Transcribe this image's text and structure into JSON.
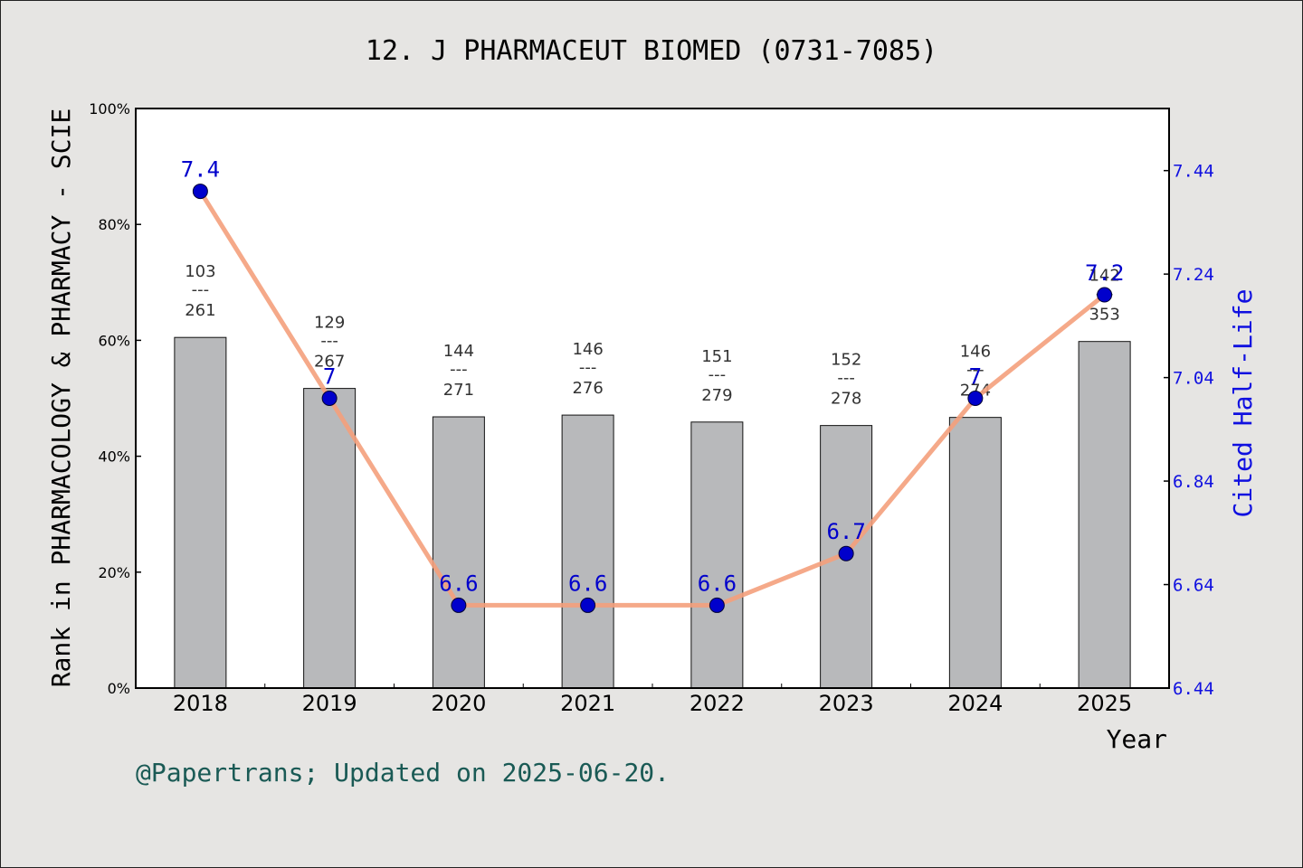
{
  "title": "12. J PHARMACEUT BIOMED (0731-7085)",
  "footer": "@Papertrans; Updated on 2025-06-20.",
  "colors": {
    "bar_fill": "#b8b9bb",
    "line": "#f4a07c",
    "marker": "#0000cc",
    "right_axis": "#1010e0",
    "footer_text": "#1a5a55",
    "background": "#e6e5e3"
  },
  "chart_data": {
    "type": "bar",
    "title": "12. J PHARMACEUT BIOMED (0731-7085)",
    "xlabel": "Year",
    "ylabel": "Rank in PHARMACOLOGY & PHARMACY - SCIE",
    "y2label": "Cited Half-Life",
    "categories": [
      "2018",
      "2019",
      "2020",
      "2021",
      "2022",
      "2023",
      "2024",
      "2025"
    ],
    "ylim": [
      0,
      100
    ],
    "yticks": [
      "0%",
      "20%",
      "40%",
      "60%",
      "80%",
      "100%"
    ],
    "y2lim": [
      6.44,
      7.56
    ],
    "y2ticks": [
      "6.44",
      "6.64",
      "6.84",
      "7.04",
      "7.24",
      "7.44"
    ],
    "grid": false,
    "series": [
      {
        "name": "Rank",
        "kind": "bar",
        "values": [
          60.5,
          51.7,
          46.8,
          47.1,
          45.9,
          45.3,
          46.7,
          59.8
        ],
        "rank": [
          "103",
          "129",
          "144",
          "146",
          "151",
          "152",
          "146",
          "142"
        ],
        "total": [
          "261",
          "267",
          "271",
          "276",
          "279",
          "278",
          "274",
          "353"
        ],
        "separator": "---"
      },
      {
        "name": "Cited Half-Life",
        "kind": "line",
        "axis": "right",
        "values": [
          7.4,
          7,
          6.6,
          6.6,
          6.6,
          6.7,
          7,
          7.2
        ],
        "labels": [
          "7.4",
          "7",
          "6.6",
          "6.6",
          "6.6",
          "6.7",
          "7",
          "7.2"
        ]
      }
    ]
  }
}
